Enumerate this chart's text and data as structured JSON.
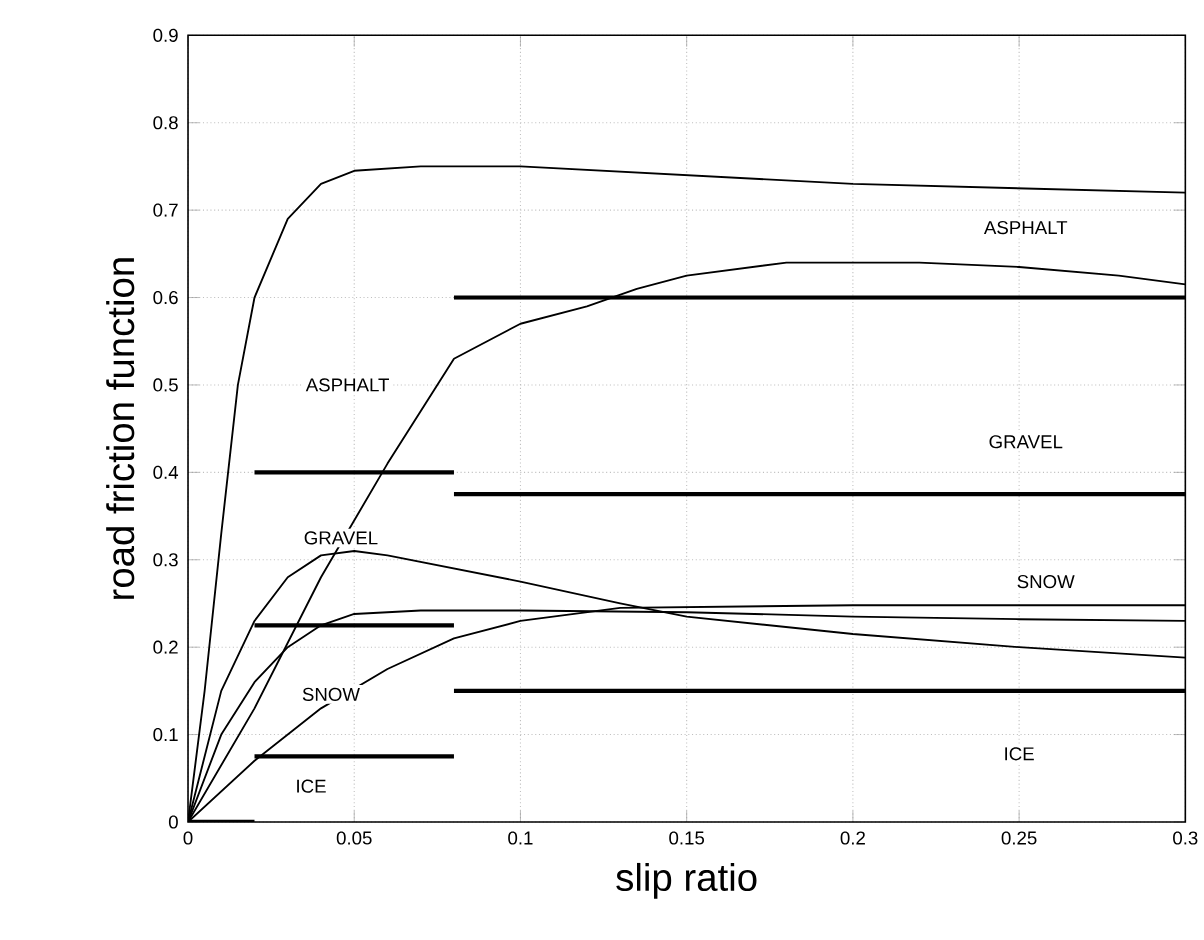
{
  "chart_data": {
    "type": "line",
    "xlabel": "slip ratio",
    "ylabel": "road friction function",
    "xlim": [
      0,
      0.3
    ],
    "ylim": [
      0,
      0.9
    ],
    "xticks": [
      0,
      0.05,
      0.1,
      0.15,
      0.2,
      0.25,
      {
        "value": 0.3,
        "label": "0.3"
      }
    ],
    "yticks": [
      0,
      0.1,
      0.2,
      0.3,
      0.4,
      0.5,
      0.6,
      0.7,
      0.8,
      0.9
    ],
    "grid": true,
    "marker": "none",
    "line_style": "solid",
    "series": [
      {
        "color": "#000000",
        "x": [
          0,
          0.005,
          0.01,
          0.015,
          0.02,
          0.03,
          0.04,
          0.05,
          0.07,
          0.1,
          0.15,
          0.2,
          0.25,
          0.3
        ],
        "values": [
          0,
          0.15,
          0.33,
          0.5,
          0.6,
          0.69,
          0.73,
          0.745,
          0.75,
          0.75,
          0.74,
          0.73,
          0.725,
          0.72
        ]
      },
      {
        "color": "#000000",
        "x": [
          0,
          0.02,
          0.04,
          0.06,
          0.08,
          0.1,
          0.12,
          0.135,
          0.15,
          0.18,
          0.22,
          0.25,
          0.28,
          0.3
        ],
        "values": [
          0,
          0.13,
          0.28,
          0.41,
          0.53,
          0.57,
          0.59,
          0.61,
          0.625,
          0.64,
          0.64,
          0.635,
          0.625,
          0.615
        ]
      },
      {
        "color": "#000000",
        "x": [
          0,
          0.01,
          0.02,
          0.03,
          0.04,
          0.05,
          0.06,
          0.08,
          0.1,
          0.13,
          0.15,
          0.2,
          0.25,
          0.3
        ],
        "values": [
          0,
          0.15,
          0.23,
          0.28,
          0.305,
          0.31,
          0.305,
          0.29,
          0.275,
          0.25,
          0.235,
          0.215,
          0.2,
          0.188
        ]
      },
      {
        "color": "#000000",
        "x": [
          0,
          0.01,
          0.02,
          0.03,
          0.04,
          0.05,
          0.07,
          0.1,
          0.15,
          0.2,
          0.25,
          0.3
        ],
        "values": [
          0,
          0.1,
          0.16,
          0.2,
          0.225,
          0.238,
          0.242,
          0.242,
          0.24,
          0.235,
          0.232,
          0.23
        ]
      },
      {
        "color": "#000000",
        "x": [
          0,
          0.02,
          0.04,
          0.06,
          0.08,
          0.1,
          0.13,
          0.2,
          0.3
        ],
        "values": [
          0,
          0.07,
          0.13,
          0.175,
          0.21,
          0.23,
          0.245,
          0.248,
          0.248
        ]
      },
      {
        "color": "#000000",
        "x": [
          0,
          0.02
        ],
        "values": [
          0,
          0
        ]
      },
      {
        "color": "#000000",
        "x": [
          0.02,
          0.08
        ],
        "values": [
          0.075,
          0.075
        ]
      },
      {
        "color": "#000000",
        "x": [
          0.02,
          0.08
        ],
        "values": [
          0.225,
          0.225
        ]
      },
      {
        "color": "#000000",
        "x": [
          0.02,
          0.08
        ],
        "values": [
          0.4,
          0.4
        ]
      },
      {
        "color": "#000000",
        "x": [
          0.08,
          0.3
        ],
        "values": [
          0.15,
          0.15
        ]
      },
      {
        "color": "#000000",
        "x": [
          0.08,
          0.3
        ],
        "values": [
          0.375,
          0.375
        ]
      },
      {
        "color": "#000000",
        "x": [
          0.08,
          0.3
        ],
        "values": [
          0.6,
          0.6
        ]
      }
    ],
    "annotations": [
      "ASPHALT",
      "GRAVEL",
      "SNOW",
      "ICE",
      "ASPHALT",
      "GRAVEL",
      "SNOW",
      "ICE"
    ]
  }
}
